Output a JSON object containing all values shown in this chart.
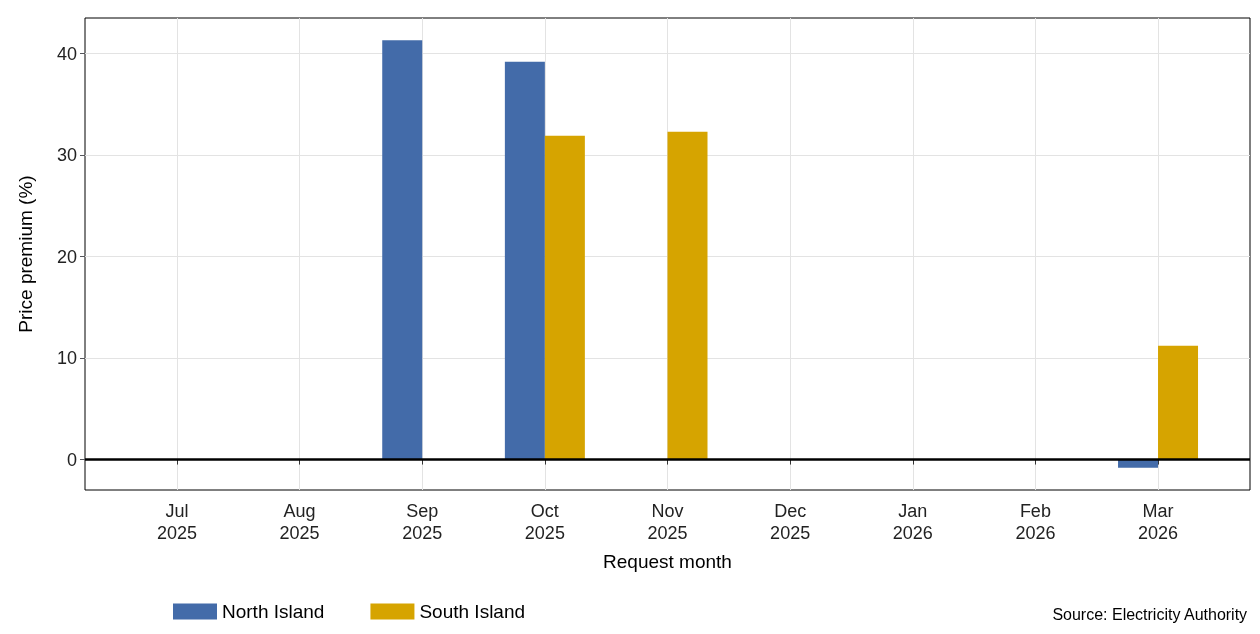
{
  "chart_data": {
    "type": "bar",
    "xlabel": "Request month",
    "ylabel": "Price premium (%)",
    "categories": [
      "Jul\n2025",
      "Aug\n2025",
      "Sep\n2025",
      "Oct\n2025",
      "Nov\n2025",
      "Dec\n2025",
      "Jan\n2026",
      "Feb\n2026",
      "Mar\n2026"
    ],
    "series": [
      {
        "name": "North Island",
        "color": "#436ba9",
        "values": [
          null,
          null,
          41.3,
          39.2,
          null,
          null,
          null,
          null,
          -0.8
        ]
      },
      {
        "name": "South Island",
        "color": "#d6a400",
        "values": [
          null,
          null,
          null,
          31.9,
          32.3,
          null,
          null,
          null,
          11.2
        ]
      }
    ],
    "ylim": [
      -3,
      43.5
    ],
    "yticks": [
      0,
      10,
      20,
      30,
      40
    ],
    "grid": true,
    "legend": "bottom",
    "ref_lines": [
      {
        "axis": "y",
        "value": 0,
        "color": "#000000"
      }
    ],
    "annotations": [
      "Source: Electricity Authority"
    ]
  }
}
